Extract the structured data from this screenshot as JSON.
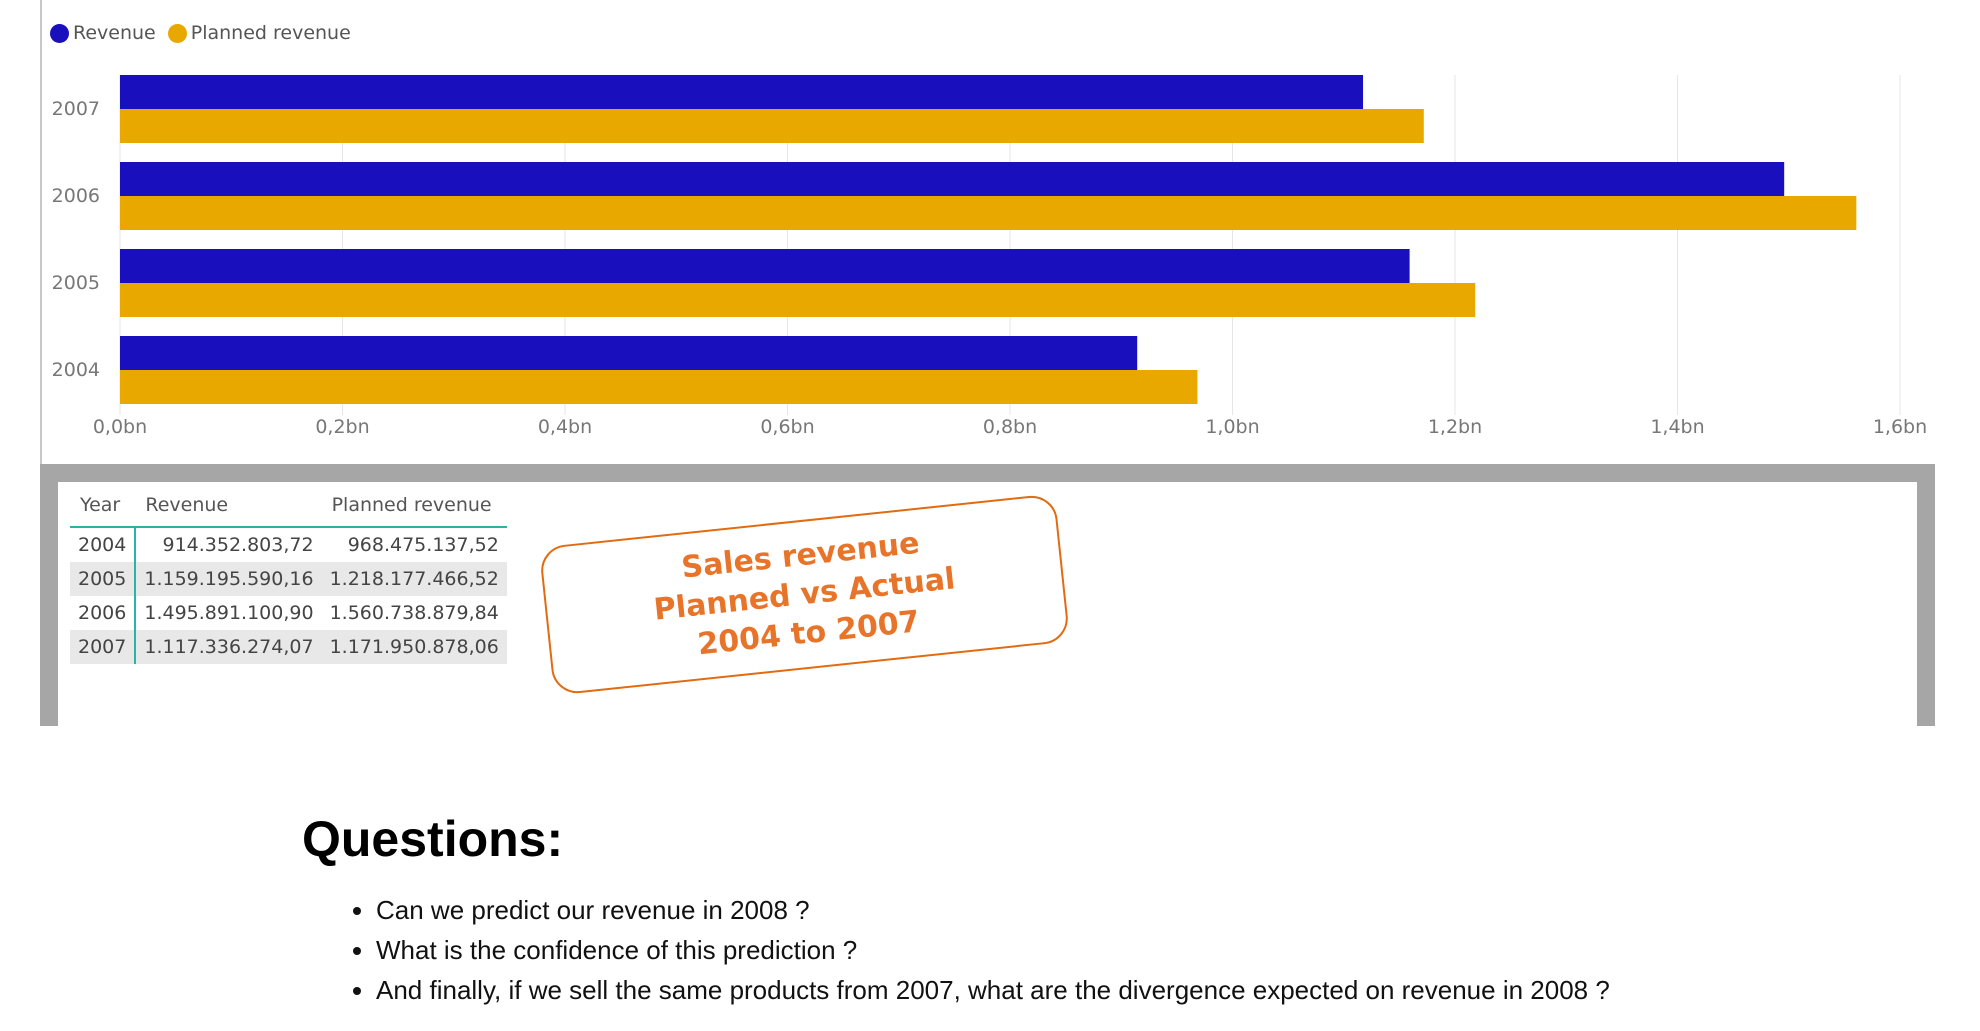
{
  "chart_data": {
    "type": "bar",
    "orientation": "horizontal",
    "categories": [
      "2007",
      "2006",
      "2005",
      "2004"
    ],
    "series": [
      {
        "name": "Revenue",
        "color": "#1a0fbd",
        "values": [
          1117336274.07,
          1495891100.9,
          1159195590.16,
          914352803.72
        ]
      },
      {
        "name": "Planned revenue",
        "color": "#e8a800",
        "values": [
          1171950878.06,
          1560738879.84,
          1218177466.52,
          968475137.52
        ]
      }
    ],
    "xlim": [
      0,
      1600000000
    ],
    "xticks": [
      "0,0bn",
      "0,2bn",
      "0,4bn",
      "0,6bn",
      "0,8bn",
      "1,0bn",
      "1,2bn",
      "1,4bn",
      "1,6bn"
    ],
    "grid": true,
    "legend_position": "top-left"
  },
  "table": {
    "headers": [
      "Year",
      "Revenue",
      "Planned revenue"
    ],
    "rows": [
      [
        "2004",
        "914.352.803,72",
        "968.475.137,52"
      ],
      [
        "2005",
        "1.159.195.590,16",
        "1.218.177.466,52"
      ],
      [
        "2006",
        "1.495.891.100,90",
        "1.560.738.879,84"
      ],
      [
        "2007",
        "1.117.336.274,07",
        "1.171.950.878,06"
      ]
    ]
  },
  "callout": {
    "line1": "Sales revenue",
    "line2": "Planned vs Actual",
    "line3": "2004 to 2007"
  },
  "questions": {
    "title": "Questions:",
    "items": [
      "Can we predict our revenue in 2008 ?",
      "What is the confidence of this prediction ?",
      "And finally, if we sell the same products from 2007, what are the divergence expected on revenue in 2008 ?"
    ]
  }
}
